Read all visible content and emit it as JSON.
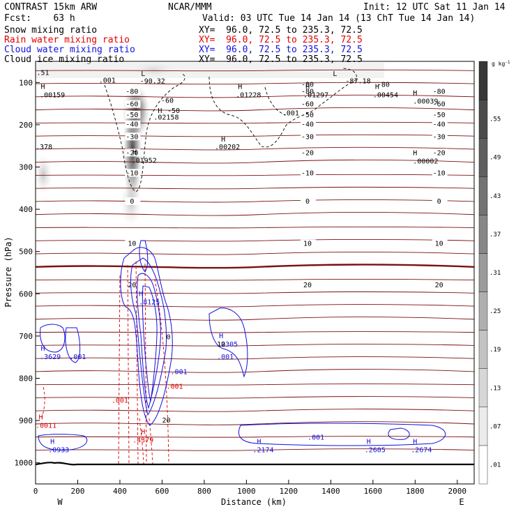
{
  "header": {
    "model": "CONTRAST 15km ARW",
    "center": "NCAR/MMM",
    "init": "Init: 12 UTC Sat 11 Jan 14",
    "fcst": "Fcst:    63 h",
    "valid": "Valid: 03 UTC Tue 14 Jan 14 (13 ChT Tue 14 Jan 14)"
  },
  "fields": [
    {
      "name": "Snow mixing ratio",
      "xy": "XY=  96.0, 72.5 to 235.3, 72.5",
      "color": "#000000"
    },
    {
      "name": "Rain water mixing ratio",
      "xy": "XY=  96.0, 72.5 to 235.3, 72.5",
      "color": "#e00000"
    },
    {
      "name": "Cloud water mixing ratio",
      "xy": "XY=  96.0, 72.5 to 235.3, 72.5",
      "color": "#1010e0"
    },
    {
      "name": "Cloud ice mixing ratio",
      "xy": "XY=  96.0, 72.5 to 235.3, 72.5",
      "color": "#000000"
    }
  ],
  "chart_data": {
    "type": "cross-section contour",
    "xlabel": "Distance (km)",
    "ylabel": "Pressure (hPa)",
    "xlim": [
      0,
      2080
    ],
    "ylim": [
      1050,
      50
    ],
    "x_ticks": [
      0,
      200,
      400,
      600,
      800,
      1000,
      1200,
      1400,
      1600,
      1800,
      2000
    ],
    "y_ticks": [
      100,
      200,
      300,
      400,
      500,
      600,
      700,
      800,
      900,
      1000
    ],
    "x_end_labels": [
      "W",
      "E"
    ],
    "colorbar": {
      "unit": "g kg",
      "unit_exp": "-1",
      "levels": [
        ".01",
        ".07",
        ".13",
        ".19",
        ".25",
        ".31",
        ".37",
        ".43",
        ".49",
        ".55"
      ]
    },
    "temperature_isotherms": [
      {
        "label": "-80",
        "p": 125
      },
      {
        "label": "-60",
        "p": 155
      },
      {
        "label": "-50",
        "p": 180
      },
      {
        "label": "-40",
        "p": 203
      },
      {
        "label": "-30",
        "p": 232
      },
      {
        "label": "-20",
        "p": 270
      },
      {
        "label": "-10",
        "p": 318
      },
      {
        "label": "0",
        "p": 385
      },
      {
        "label": "10",
        "p": 485
      },
      {
        "label": "20",
        "p": 583
      }
    ],
    "temperature_extra_labels": [
      {
        "text": "-90.32",
        "x": 495,
        "p": 102
      },
      {
        "text": "-80",
        "x": 1260,
        "p": 110
      },
      {
        "text": "-80",
        "x": 1620,
        "p": 110
      },
      {
        "text": "-87.18",
        "x": 1470,
        "p": 102
      },
      {
        "text": "-60",
        "x": 595,
        "p": 148
      },
      {
        "text": "-50",
        "x": 625,
        "p": 172
      },
      {
        "text": "10",
        "x": 860,
        "p": 725
      },
      {
        "text": "0",
        "x": 620,
        "p": 708
      },
      {
        "text": "20",
        "x": 600,
        "p": 905
      }
    ],
    "snow_labels": [
      {
        "text": ".001",
        "x": 300,
        "p": 100
      },
      {
        "text": ".001",
        "x": 1170,
        "p": 178
      },
      {
        "text": ".01952",
        "x": 455,
        "p": 290
      },
      {
        "text": ".02158",
        "x": 560,
        "p": 188
      },
      {
        "text": ".00159",
        "x": 20,
        "p": 135
      },
      {
        "text": ".01228",
        "x": 950,
        "p": 135
      },
      {
        "text": ".01297",
        "x": 1270,
        "p": 135
      },
      {
        "text": ".00454",
        "x": 1600,
        "p": 135
      },
      {
        "text": ".00039",
        "x": 1790,
        "p": 150
      },
      {
        "text": ".00202",
        "x": 850,
        "p": 258
      },
      {
        "text": ".00002",
        "x": 1790,
        "p": 292
      },
      {
        "text": ".378",
        "x": 0,
        "p": 258
      },
      {
        "text": ".51",
        "x": 5,
        "p": 82
      }
    ],
    "rain_labels": [
      {
        "text": ".001",
        "x": 360,
        "p": 858
      },
      {
        "text": ".001",
        "x": 620,
        "p": 825
      },
      {
        "text": ".0011",
        "x": 0,
        "p": 917
      },
      {
        "text": ".4379",
        "x": 460,
        "p": 952
      }
    ],
    "cloud_labels": [
      {
        "text": ".8125",
        "x": 490,
        "p": 625
      },
      {
        "text": ".2305",
        "x": 860,
        "p": 725
      },
      {
        "text": ".001",
        "x": 860,
        "p": 755
      },
      {
        "text": ".3629",
        "x": 20,
        "p": 755
      },
      {
        "text": ".001",
        "x": 160,
        "p": 755
      },
      {
        "text": ".001",
        "x": 640,
        "p": 790
      },
      {
        "text": ".0933",
        "x": 60,
        "p": 975
      },
      {
        "text": ".2174",
        "x": 1030,
        "p": 975
      },
      {
        "text": ".001",
        "x": 1290,
        "p": 945
      },
      {
        "text": ".2605",
        "x": 1560,
        "p": 975
      },
      {
        "text": ".2674",
        "x": 1780,
        "p": 975
      }
    ],
    "extrema": [
      {
        "text": "H",
        "x": 25,
        "p": 115,
        "color": "#000000"
      },
      {
        "text": "L",
        "x": 500,
        "p": 85,
        "color": "#000000"
      },
      {
        "text": "H",
        "x": 580,
        "p": 172,
        "color": "#000000"
      },
      {
        "text": "H",
        "x": 960,
        "p": 115,
        "color": "#000000"
      },
      {
        "text": "H",
        "x": 1280,
        "p": 115,
        "color": "#000000"
      },
      {
        "text": "L",
        "x": 1410,
        "p": 85,
        "color": "#000000"
      },
      {
        "text": "H",
        "x": 1610,
        "p": 115,
        "color": "#000000"
      },
      {
        "text": "H",
        "x": 1790,
        "p": 130,
        "color": "#000000"
      },
      {
        "text": "H",
        "x": 880,
        "p": 240,
        "color": "#000000"
      },
      {
        "text": "H",
        "x": 1790,
        "p": 272,
        "color": "#000000"
      },
      {
        "text": "H",
        "x": 460,
        "p": 270,
        "color": "#000000"
      },
      {
        "text": "H",
        "x": 490,
        "p": 605,
        "color": "#1010e0"
      },
      {
        "text": "H",
        "x": 870,
        "p": 705,
        "color": "#1010e0"
      },
      {
        "text": "H",
        "x": 25,
        "p": 735,
        "color": "#1010e0"
      },
      {
        "text": "H",
        "x": 15,
        "p": 897,
        "color": "#e00000"
      },
      {
        "text": "H",
        "x": 500,
        "p": 932,
        "color": "#e00000"
      },
      {
        "text": "H",
        "x": 70,
        "p": 955,
        "color": "#1010e0"
      },
      {
        "text": "H",
        "x": 1050,
        "p": 955,
        "color": "#1010e0"
      },
      {
        "text": "H",
        "x": 1570,
        "p": 955,
        "color": "#1010e0"
      },
      {
        "text": "H",
        "x": 1790,
        "p": 955,
        "color": "#1010e0"
      }
    ]
  }
}
